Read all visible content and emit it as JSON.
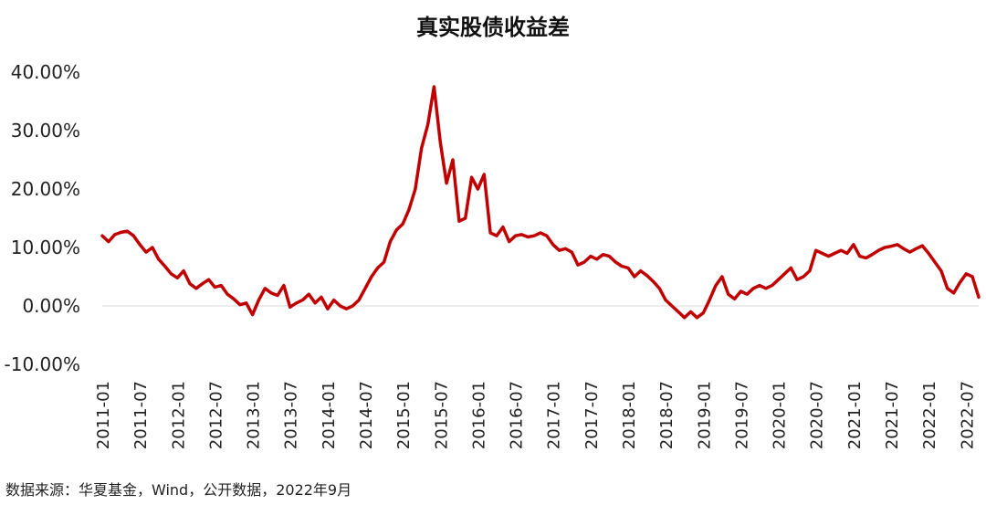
{
  "chart_data": {
    "type": "line",
    "title": "真实股债收益差",
    "xlabel": "",
    "ylabel": "",
    "y_tick_labels": [
      "40.00%",
      "30.00%",
      "20.00%",
      "10.00%",
      "0.00%",
      "-10.00%"
    ],
    "y_ticks": [
      40,
      30,
      20,
      10,
      0,
      -10
    ],
    "ylim": [
      -10,
      40
    ],
    "x_tick_labels": [
      "2011-01",
      "2011-07",
      "2012-01",
      "2012-07",
      "2013-01",
      "2013-07",
      "2014-01",
      "2014-07",
      "2015-01",
      "2015-07",
      "2016-01",
      "2016-07",
      "2017-01",
      "2017-07",
      "2018-01",
      "2018-07",
      "2019-01",
      "2019-07",
      "2020-01",
      "2020-07",
      "2021-01",
      "2021-07",
      "2022-01",
      "2022-07"
    ],
    "xlim": [
      "2011-01",
      "2022-09"
    ],
    "grid": false,
    "zero_line": true,
    "series": [
      {
        "color": "#c00000",
        "points": [
          [
            "2011-01",
            12.0
          ],
          [
            "2011-02",
            11.0
          ],
          [
            "2011-03",
            12.2
          ],
          [
            "2011-04",
            12.6
          ],
          [
            "2011-05",
            12.8
          ],
          [
            "2011-06",
            12.0
          ],
          [
            "2011-07",
            10.5
          ],
          [
            "2011-08",
            9.2
          ],
          [
            "2011-09",
            10.0
          ],
          [
            "2011-10",
            8.0
          ],
          [
            "2011-11",
            6.8
          ],
          [
            "2011-12",
            5.5
          ],
          [
            "2012-01",
            4.8
          ],
          [
            "2012-02",
            6.0
          ],
          [
            "2012-03",
            3.8
          ],
          [
            "2012-04",
            3.0
          ],
          [
            "2012-05",
            3.8
          ],
          [
            "2012-06",
            4.5
          ],
          [
            "2012-07",
            3.2
          ],
          [
            "2012-08",
            3.5
          ],
          [
            "2012-09",
            2.0
          ],
          [
            "2012-10",
            1.2
          ],
          [
            "2012-11",
            0.2
          ],
          [
            "2012-12",
            0.5
          ],
          [
            "2013-01",
            -1.5
          ],
          [
            "2013-02",
            1.0
          ],
          [
            "2013-03",
            3.0
          ],
          [
            "2013-04",
            2.2
          ],
          [
            "2013-05",
            1.8
          ],
          [
            "2013-06",
            3.5
          ],
          [
            "2013-07",
            -0.2
          ],
          [
            "2013-08",
            0.5
          ],
          [
            "2013-09",
            1.0
          ],
          [
            "2013-10",
            2.0
          ],
          [
            "2013-11",
            0.5
          ],
          [
            "2013-12",
            1.5
          ],
          [
            "2014-01",
            -0.5
          ],
          [
            "2014-02",
            1.0
          ],
          [
            "2014-03",
            0.0
          ],
          [
            "2014-04",
            -0.5
          ],
          [
            "2014-05",
            0.0
          ],
          [
            "2014-06",
            1.0
          ],
          [
            "2014-07",
            3.0
          ],
          [
            "2014-08",
            5.0
          ],
          [
            "2014-09",
            6.5
          ],
          [
            "2014-10",
            7.5
          ],
          [
            "2014-11",
            11.0
          ],
          [
            "2014-12",
            13.0
          ],
          [
            "2015-01",
            14.0
          ],
          [
            "2015-02",
            16.5
          ],
          [
            "2015-03",
            20.0
          ],
          [
            "2015-04",
            27.0
          ],
          [
            "2015-05",
            31.0
          ],
          [
            "2015-06",
            37.5
          ],
          [
            "2015-07",
            28.0
          ],
          [
            "2015-08",
            21.0
          ],
          [
            "2015-09",
            25.0
          ],
          [
            "2015-10",
            14.5
          ],
          [
            "2015-11",
            15.0
          ],
          [
            "2015-12",
            22.0
          ],
          [
            "2016-01",
            20.0
          ],
          [
            "2016-02",
            22.5
          ],
          [
            "2016-03",
            12.5
          ],
          [
            "2016-04",
            12.0
          ],
          [
            "2016-05",
            13.5
          ],
          [
            "2016-06",
            11.0
          ],
          [
            "2016-07",
            12.0
          ],
          [
            "2016-08",
            12.2
          ],
          [
            "2016-09",
            11.8
          ],
          [
            "2016-10",
            12.0
          ],
          [
            "2016-11",
            12.5
          ],
          [
            "2016-12",
            12.0
          ],
          [
            "2017-01",
            10.5
          ],
          [
            "2017-02",
            9.5
          ],
          [
            "2017-03",
            9.8
          ],
          [
            "2017-04",
            9.2
          ],
          [
            "2017-05",
            7.0
          ],
          [
            "2017-06",
            7.5
          ],
          [
            "2017-07",
            8.5
          ],
          [
            "2017-08",
            8.0
          ],
          [
            "2017-09",
            8.8
          ],
          [
            "2017-10",
            8.5
          ],
          [
            "2017-11",
            7.5
          ],
          [
            "2017-12",
            6.8
          ],
          [
            "2018-01",
            6.5
          ],
          [
            "2018-02",
            5.0
          ],
          [
            "2018-03",
            6.0
          ],
          [
            "2018-04",
            5.2
          ],
          [
            "2018-05",
            4.2
          ],
          [
            "2018-06",
            3.0
          ],
          [
            "2018-07",
            1.0
          ],
          [
            "2018-08",
            0.0
          ],
          [
            "2018-09",
            -1.0
          ],
          [
            "2018-10",
            -2.0
          ],
          [
            "2018-11",
            -1.0
          ],
          [
            "2018-12",
            -2.0
          ],
          [
            "2019-01",
            -1.2
          ],
          [
            "2019-02",
            1.0
          ],
          [
            "2019-03",
            3.5
          ],
          [
            "2019-04",
            5.0
          ],
          [
            "2019-05",
            2.0
          ],
          [
            "2019-06",
            1.2
          ],
          [
            "2019-07",
            2.5
          ],
          [
            "2019-08",
            2.0
          ],
          [
            "2019-09",
            3.0
          ],
          [
            "2019-10",
            3.5
          ],
          [
            "2019-11",
            3.0
          ],
          [
            "2019-12",
            3.5
          ],
          [
            "2020-01",
            4.5
          ],
          [
            "2020-02",
            5.5
          ],
          [
            "2020-03",
            6.5
          ],
          [
            "2020-04",
            4.5
          ],
          [
            "2020-05",
            5.0
          ],
          [
            "2020-06",
            6.0
          ],
          [
            "2020-07",
            9.5
          ],
          [
            "2020-08",
            9.0
          ],
          [
            "2020-09",
            8.5
          ],
          [
            "2020-10",
            9.0
          ],
          [
            "2020-11",
            9.5
          ],
          [
            "2020-12",
            9.0
          ],
          [
            "2021-01",
            10.5
          ],
          [
            "2021-02",
            8.5
          ],
          [
            "2021-03",
            8.2
          ],
          [
            "2021-04",
            8.8
          ],
          [
            "2021-05",
            9.5
          ],
          [
            "2021-06",
            10.0
          ],
          [
            "2021-07",
            10.2
          ],
          [
            "2021-08",
            10.5
          ],
          [
            "2021-09",
            9.8
          ],
          [
            "2021-10",
            9.2
          ],
          [
            "2021-11",
            9.8
          ],
          [
            "2021-12",
            10.3
          ],
          [
            "2022-01",
            9.0
          ],
          [
            "2022-02",
            7.5
          ],
          [
            "2022-03",
            6.0
          ],
          [
            "2022-04",
            3.0
          ],
          [
            "2022-05",
            2.2
          ],
          [
            "2022-06",
            4.0
          ],
          [
            "2022-07",
            5.5
          ],
          [
            "2022-08",
            5.0
          ],
          [
            "2022-09",
            1.5
          ]
        ]
      }
    ]
  },
  "source_note": "数据来源：华夏基金，Wind，公开数据，2022年9月"
}
